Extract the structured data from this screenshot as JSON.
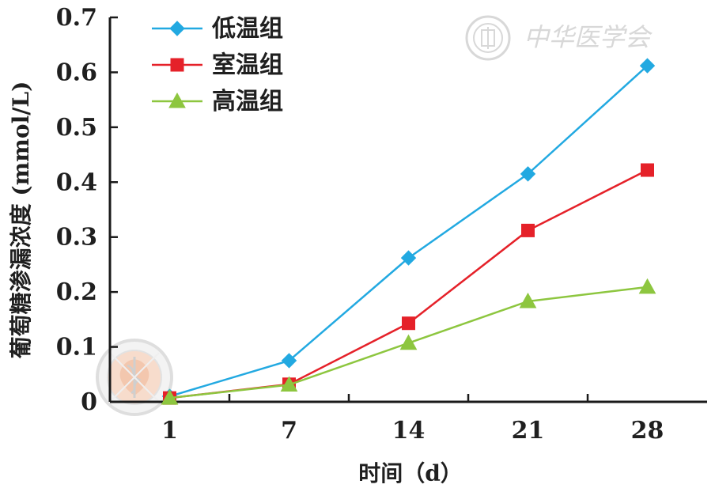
{
  "chart_data": {
    "type": "line",
    "title": "",
    "xlabel": "时间（d）",
    "ylabel": "葡萄糖渗漏浓度 (mmol/L)",
    "categories": [
      "1",
      "7",
      "14",
      "21",
      "28"
    ],
    "ylim": [
      0,
      0.7
    ],
    "yticks": [
      "0",
      "0.1",
      "0.2",
      "0.3",
      "0.4",
      "0.5",
      "0.6",
      "0.7"
    ],
    "grid": false,
    "legend_position": "top-left",
    "series": [
      {
        "name": "低温组",
        "color": "#22A9E1",
        "marker": "diamond",
        "values": [
          0.01,
          0.075,
          0.262,
          0.415,
          0.612
        ]
      },
      {
        "name": "室温组",
        "color": "#E52129",
        "marker": "square",
        "values": [
          0.007,
          0.032,
          0.143,
          0.312,
          0.422
        ]
      },
      {
        "name": "高温组",
        "color": "#8DC63F",
        "marker": "triangle",
        "values": [
          0.007,
          0.031,
          0.107,
          0.183,
          0.209
        ]
      }
    ]
  },
  "watermark": {
    "text": "中华医学会",
    "color": "#d8d8d8",
    "seal_icon": "association-seal-icon",
    "emblem_icon": "medical-emblem-icon"
  }
}
